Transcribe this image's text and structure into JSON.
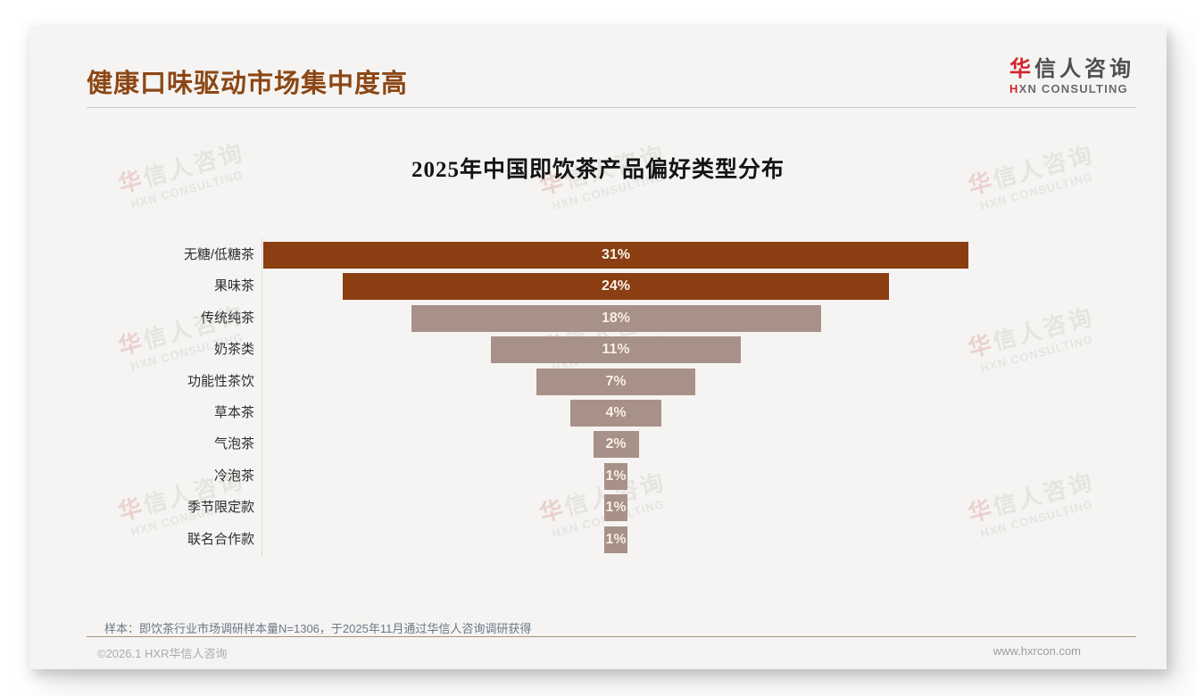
{
  "page": {
    "title": "健康口味驱动市场集中度高"
  },
  "logo": {
    "zh_first": "华",
    "zh_rest": "信人咨询",
    "en_accent": "H",
    "en_rest": "XN CONSULTING"
  },
  "watermark": {
    "zh_first": "华",
    "zh_rest": "信人咨询",
    "en": "HXN CONSULTING"
  },
  "chart_data": {
    "type": "bar",
    "variant": "horizontal-centered-funnel",
    "title": "2025年中国即饮茶产品偏好类型分布",
    "categories": [
      "无糖/低糖茶",
      "果味茶",
      "传统纯茶",
      "奶茶类",
      "功能性茶饮",
      "草本茶",
      "气泡茶",
      "冷泡茶",
      "季节限定款",
      "联名合作款"
    ],
    "values": [
      31,
      24,
      18,
      11,
      7,
      4,
      2,
      1,
      1,
      1
    ],
    "value_labels": [
      "31%",
      "24%",
      "18%",
      "11%",
      "7%",
      "4%",
      "2%",
      "1%",
      "1%",
      "1%"
    ],
    "unit": "%",
    "xlim": [
      0,
      31
    ],
    "grid": false,
    "legend": false,
    "highlight_count": 2,
    "colors": {
      "highlight": "#8A3E12",
      "normal": "#A89189",
      "value_text": "#FBF3E8"
    }
  },
  "footer": {
    "note": "样本：即饮茶行业市场调研样本量N=1306，于2025年11月通过华信人咨询调研获得",
    "copyright": "©2026.1 HXR华信人咨询",
    "website": "www.hxrcon.com"
  }
}
